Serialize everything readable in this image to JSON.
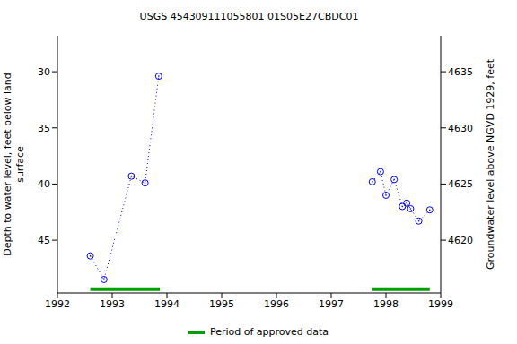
{
  "chart_data": {
    "type": "line",
    "title": "USGS 454309111055801 01S05E27CBDC01",
    "x_label": "",
    "y_label": "Depth to water level, feet below land surface",
    "y2_label": "Groundwater level above NGVD 1929, feet",
    "xlim": [
      1992,
      1999
    ],
    "xticks": [
      1992,
      1993,
      1994,
      1995,
      1996,
      1997,
      1998,
      1999
    ],
    "ylim": [
      26.8,
      49.7
    ],
    "yticks": [
      30,
      35,
      40,
      45
    ],
    "y2lim": [
      4615.3,
      4638.2
    ],
    "y2ticks": [
      4620,
      4625,
      4630,
      4635
    ],
    "log": "",
    "grid": false,
    "legend": "bottom",
    "series": [
      {
        "color": "#0000ff",
        "marker": "circle",
        "line_style": "dotted",
        "x": [
          1992.6,
          1992.85,
          1993.35,
          1993.6,
          1993.85
        ],
        "values": [
          46.4,
          48.5,
          39.3,
          39.9,
          30.4
        ]
      },
      {
        "color": "#0000ff",
        "marker": "circle",
        "line_style": "dotted",
        "x": [
          1997.75,
          1997.9,
          1998.0,
          1998.15,
          1998.3,
          1998.38,
          1998.45,
          1998.6,
          1998.8
        ],
        "values": [
          39.8,
          38.9,
          41.0,
          39.6,
          42.0,
          41.7,
          42.2,
          43.3,
          42.3
        ]
      }
    ],
    "approved_periods": {
      "name": "Period of approved data",
      "color": "#00a000",
      "ranges": [
        [
          1992.6,
          1993.87
        ],
        [
          1997.75,
          1998.8
        ]
      ]
    }
  }
}
